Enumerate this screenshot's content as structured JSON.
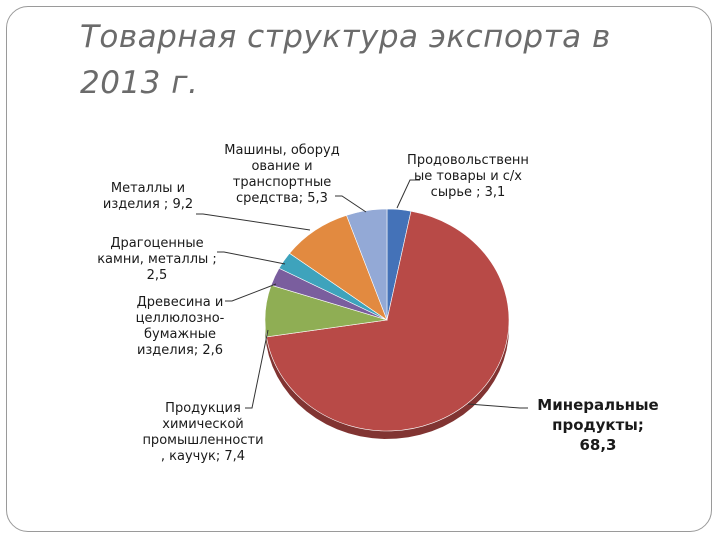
{
  "slide": {
    "title_line1": "Товарная структура экспорта в",
    "title_line2": "2013 г."
  },
  "chart_data": {
    "type": "pie",
    "title": "",
    "start_angle_deg": 0,
    "direction": "clockwise",
    "slices": [
      {
        "label_lines": [
          "Продовольственн",
          "ые товары и с/х",
          "сырье ; 3,1"
        ],
        "value": 3.1,
        "color": "#4472b8"
      },
      {
        "label_lines": [
          "Минеральные",
          "продукты;",
          "68,3"
        ],
        "value": 68.3,
        "color": "#b84a47"
      },
      {
        "label_lines": [
          "Продукция",
          "химической",
          "промышленности",
          ", каучук; 7,4"
        ],
        "value": 7.4,
        "color": "#8fae54"
      },
      {
        "label_lines": [
          "Древесина и",
          "целлюлозно-",
          "бумажные",
          "изделия; 2,6"
        ],
        "value": 2.6,
        "color": "#7a5e9e"
      },
      {
        "label_lines": [
          "Драгоценные",
          "камни, металлы ;",
          "2,5"
        ],
        "value": 2.5,
        "color": "#3ea3bc"
      },
      {
        "label_lines": [
          "Металлы и",
          "изделия ; 9,2"
        ],
        "value": 9.2,
        "color": "#e28a40"
      },
      {
        "label_lines": [
          "Машины, оборуд",
          "ование и",
          "транспортные",
          "средства; 5,3"
        ],
        "value": 5.3,
        "color": "#93a9d6"
      }
    ]
  }
}
